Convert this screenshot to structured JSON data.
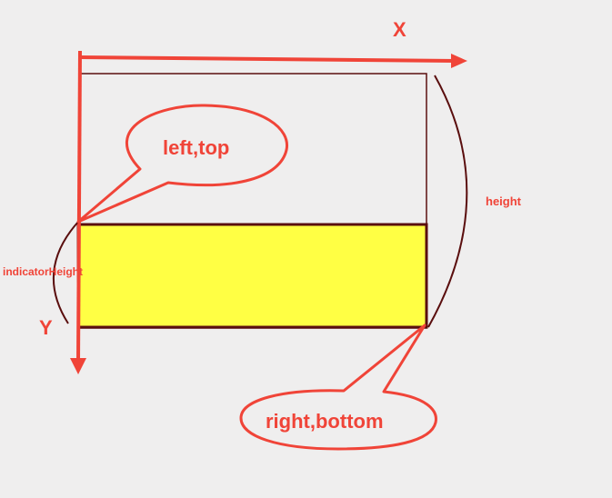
{
  "axes": {
    "x_label": "X",
    "y_label": "Y"
  },
  "callouts": {
    "top_left": "left,top",
    "bottom_right": "right,bottom"
  },
  "dimensions": {
    "height_label": "height",
    "indicator_height_label": "indicatorHeight"
  },
  "colors": {
    "background": "#efeeee",
    "accent_red": "#f04438",
    "outline_dark": "#5a0e0e",
    "indicator_fill": "#ffff44"
  }
}
